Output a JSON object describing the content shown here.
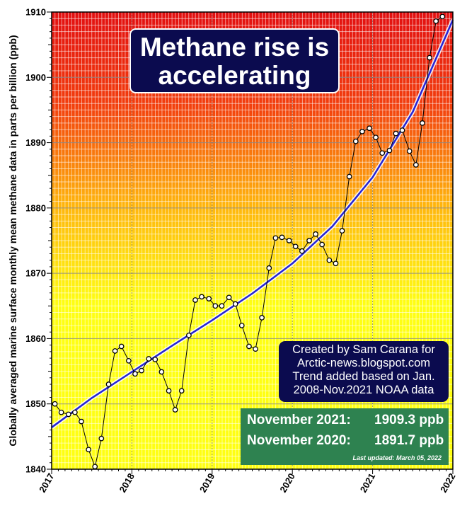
{
  "chart_data": {
    "type": "line",
    "title": "Methane rise is accelerating",
    "ylabel": "Globally averaged marine surface monthly mean methane data in parts per billion (ppb)",
    "xlabel": "",
    "x_ticks": [
      "2017",
      "2018",
      "2019",
      "2020",
      "2021",
      "2022"
    ],
    "y_ticks": [
      1840,
      1850,
      1860,
      1870,
      1880,
      1890,
      1900,
      1910
    ],
    "xlim": [
      2017.0,
      2022.0
    ],
    "ylim": [
      1840,
      1910
    ],
    "grid": true,
    "series": [
      {
        "style": "line-with-markers",
        "points": [
          [
            2017.04,
            1850.0
          ],
          [
            2017.12,
            1848.7
          ],
          [
            2017.21,
            1848.4
          ],
          [
            2017.29,
            1848.7
          ],
          [
            2017.37,
            1847.3
          ],
          [
            2017.46,
            1843.0
          ],
          [
            2017.54,
            1840.4
          ],
          [
            2017.62,
            1844.7
          ],
          [
            2017.71,
            1853.0
          ],
          [
            2017.79,
            1858.1
          ],
          [
            2017.87,
            1858.8
          ],
          [
            2017.96,
            1856.6
          ],
          [
            2018.04,
            1854.6
          ],
          [
            2018.12,
            1855.1
          ],
          [
            2018.21,
            1856.9
          ],
          [
            2018.29,
            1856.8
          ],
          [
            2018.37,
            1854.9
          ],
          [
            2018.46,
            1852.0
          ],
          [
            2018.54,
            1849.1
          ],
          [
            2018.62,
            1852.0
          ],
          [
            2018.71,
            1860.5
          ],
          [
            2018.79,
            1865.9
          ],
          [
            2018.87,
            1866.4
          ],
          [
            2018.96,
            1866.1
          ],
          [
            2019.04,
            1865.0
          ],
          [
            2019.12,
            1865.0
          ],
          [
            2019.21,
            1866.3
          ],
          [
            2019.29,
            1865.3
          ],
          [
            2019.37,
            1862.0
          ],
          [
            2019.46,
            1858.8
          ],
          [
            2019.54,
            1858.4
          ],
          [
            2019.62,
            1863.2
          ],
          [
            2019.71,
            1870.8
          ],
          [
            2019.79,
            1875.4
          ],
          [
            2019.87,
            1875.5
          ],
          [
            2019.96,
            1875.0
          ],
          [
            2020.04,
            1874.1
          ],
          [
            2020.12,
            1873.4
          ],
          [
            2020.21,
            1875.0
          ],
          [
            2020.29,
            1876.0
          ],
          [
            2020.37,
            1874.4
          ],
          [
            2020.46,
            1872.0
          ],
          [
            2020.54,
            1871.5
          ],
          [
            2020.62,
            1876.5
          ],
          [
            2020.71,
            1884.8
          ],
          [
            2020.79,
            1890.2
          ],
          [
            2020.87,
            1891.7
          ],
          [
            2020.96,
            1892.2
          ],
          [
            2021.04,
            1890.8
          ],
          [
            2021.12,
            1888.4
          ],
          [
            2021.21,
            1888.8
          ],
          [
            2021.29,
            1891.4
          ],
          [
            2021.37,
            1891.9
          ],
          [
            2021.46,
            1888.7
          ],
          [
            2021.54,
            1886.6
          ],
          [
            2021.62,
            1893.0
          ],
          [
            2021.71,
            1903.0
          ],
          [
            2021.79,
            1908.6
          ],
          [
            2021.87,
            1909.3
          ]
        ]
      },
      {
        "style": "trend",
        "color": "#2323d8",
        "points": [
          [
            2017.0,
            1846.4
          ],
          [
            2017.5,
            1850.9
          ],
          [
            2018.0,
            1854.9
          ],
          [
            2018.5,
            1858.9
          ],
          [
            2019.0,
            1862.8
          ],
          [
            2019.5,
            1866.9
          ],
          [
            2020.0,
            1871.5
          ],
          [
            2020.5,
            1877.2
          ],
          [
            2021.0,
            1884.7
          ],
          [
            2021.5,
            1894.7
          ],
          [
            2022.0,
            1908.8
          ]
        ]
      }
    ]
  },
  "title_lines": [
    "Methane rise is",
    "accelerating"
  ],
  "credit_lines": [
    "Created by Sam Carana for",
    "Arctic-news.blogspot.com",
    "Trend added based on Jan.",
    "2008-Nov.2021 NOAA data"
  ],
  "data_box": {
    "rows": [
      {
        "label": "November 2021:",
        "value": "1909.3 ppb"
      },
      {
        "label": "November 2020:",
        "value": "1891.7 ppb"
      }
    ],
    "updated": "Last updated: March 05, 2022"
  },
  "colors": {
    "background_bottom": "#ffff12",
    "background_top": "#e10f0f",
    "trend_line": "#2323d8",
    "title_box": "#0b0b4f",
    "data_box": "#2e8250"
  }
}
